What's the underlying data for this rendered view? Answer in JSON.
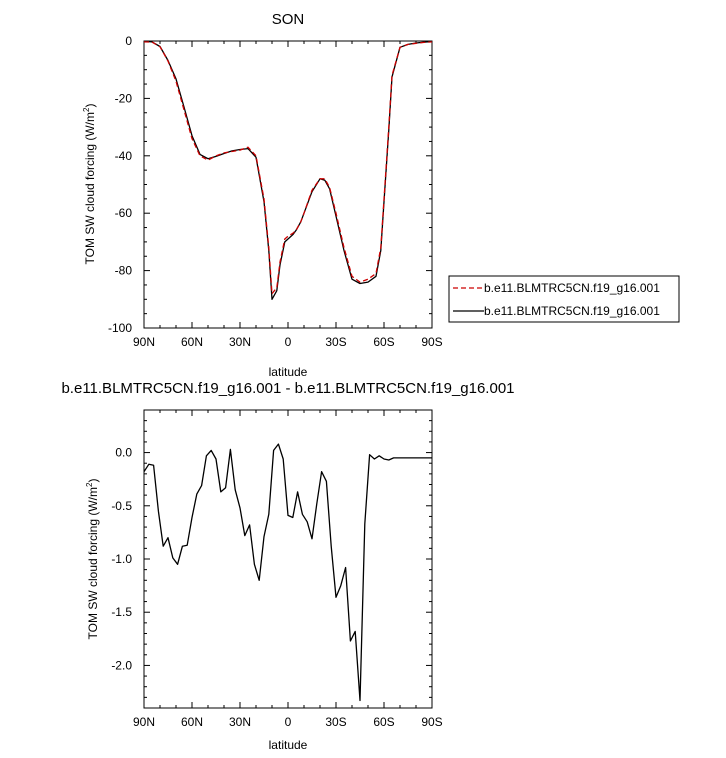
{
  "chart_data": [
    {
      "type": "line",
      "title": "SON",
      "xlabel": "latitude",
      "ylabel": "TOM SW cloud forcing (W/m²)",
      "ylabel_main": "TOM SW cloud forcing (W/m",
      "ylabel_sup": "2",
      "ylabel_end": ")",
      "xlim": [
        -90,
        90
      ],
      "ylim": [
        -100,
        0
      ],
      "xticks": [
        -90,
        -60,
        -30,
        0,
        30,
        60,
        90
      ],
      "xtick_labels": [
        "90N",
        "60N",
        "30N",
        "0",
        "30S",
        "60S",
        "90S"
      ],
      "yticks": [
        0,
        -20,
        -40,
        -60,
        -80,
        -100
      ],
      "ytick_labels": [
        "0",
        "-20",
        "-40",
        "-60",
        "-80",
        "-100"
      ],
      "legend_position": "right",
      "series": [
        {
          "name": "b.e11.BLMTRC5CN.f19_g16.001",
          "color": "#cc0000",
          "dash": "dashed",
          "x": [
            -90,
            -85,
            -80,
            -75,
            -70,
            -65,
            -60,
            -55,
            -50,
            -45,
            -40,
            -35,
            -30,
            -25,
            -20,
            -15,
            -12,
            -10,
            -7,
            -5,
            -2,
            0,
            3,
            5,
            8,
            10,
            15,
            20,
            23,
            26,
            30,
            35,
            40,
            45,
            50,
            55,
            58,
            60,
            63,
            65,
            70,
            75,
            80,
            85,
            90
          ],
          "y": [
            -0.3,
            -0.4,
            -2,
            -7,
            -14,
            -24,
            -34,
            -40,
            -41.5,
            -40,
            -39,
            -38.5,
            -38,
            -37,
            -40,
            -55,
            -72,
            -88,
            -86,
            -77,
            -69,
            -68,
            -67,
            -66,
            -63,
            -60,
            -52,
            -48,
            -48,
            -51,
            -60,
            -72,
            -82,
            -84,
            -83,
            -81,
            -72,
            -55,
            -30,
            -12,
            -2.2,
            -1.2,
            -0.8,
            -0.5,
            -0.3
          ]
        },
        {
          "name": "b.e11.BLMTRC5CN.f19_g16.001",
          "color": "#000000",
          "dash": "solid",
          "x": [
            -90,
            -85,
            -80,
            -75,
            -70,
            -65,
            -60,
            -55,
            -50,
            -45,
            -40,
            -35,
            -30,
            -25,
            -20,
            -15,
            -12,
            -10,
            -7,
            -5,
            -2,
            0,
            3,
            5,
            8,
            10,
            15,
            20,
            23,
            26,
            30,
            35,
            40,
            45,
            50,
            55,
            58,
            60,
            63,
            65,
            70,
            75,
            80,
            85,
            90
          ],
          "y": [
            -0.1,
            -0.3,
            -1.9,
            -6.8,
            -13.2,
            -23,
            -33,
            -39.5,
            -41,
            -40.2,
            -39.2,
            -38.3,
            -37.8,
            -37.5,
            -40.5,
            -56,
            -73,
            -90,
            -87,
            -78,
            -70,
            -69,
            -67.5,
            -66,
            -63,
            -60,
            -52.5,
            -48,
            -48.5,
            -51.5,
            -61,
            -73,
            -83,
            -84.5,
            -84,
            -82,
            -73,
            -56,
            -31,
            -12.5,
            -2.2,
            -1.2,
            -0.7,
            -0.4,
            -0.2
          ]
        }
      ]
    },
    {
      "type": "line",
      "title": "b.e11.BLMTRC5CN.f19_g16.001 - b.e11.BLMTRC5CN.f19_g16.001",
      "xlabel": "latitude",
      "ylabel": "TOM SW cloud forcing (W/m²)",
      "ylabel_main": "TOM SW cloud forcing (W/m",
      "ylabel_sup": "2",
      "ylabel_end": ")",
      "xlim": [
        -90,
        90
      ],
      "ylim": [
        -2.4,
        0.4
      ],
      "xticks": [
        -90,
        -60,
        -30,
        0,
        30,
        60,
        90
      ],
      "xtick_labels": [
        "90N",
        "60N",
        "30N",
        "0",
        "30S",
        "60S",
        "90S"
      ],
      "yticks": [
        0.0,
        -0.5,
        -1.0,
        -1.5,
        -2.0
      ],
      "ytick_labels": [
        "0.0",
        "-0.5",
        "-1.0",
        "-1.5",
        "-2.0"
      ],
      "series": [
        {
          "color": "#000000",
          "dash": "solid",
          "x": [
            -90,
            -87,
            -84,
            -81,
            -78,
            -75,
            -72,
            -69,
            -66,
            -63,
            -60,
            -57,
            -54,
            -51,
            -48,
            -45,
            -42,
            -39,
            -36,
            -33,
            -30,
            -27,
            -24,
            -21,
            -18,
            -15,
            -12,
            -9,
            -6,
            -3,
            0,
            3,
            6,
            9,
            12,
            15,
            18,
            21,
            24,
            27,
            30,
            33,
            36,
            39,
            42,
            45,
            48,
            51,
            54,
            57,
            60,
            63,
            66,
            69,
            72,
            75,
            78,
            81,
            84,
            87,
            90
          ],
          "y": [
            -0.18,
            -0.11,
            -0.12,
            -0.55,
            -0.88,
            -0.8,
            -0.99,
            -1.05,
            -0.88,
            -0.87,
            -0.61,
            -0.39,
            -0.31,
            -0.03,
            0.02,
            -0.06,
            -0.37,
            -0.33,
            0.03,
            -0.35,
            -0.52,
            -0.78,
            -0.68,
            -1.05,
            -1.2,
            -0.79,
            -0.58,
            0.02,
            0.08,
            -0.06,
            -0.59,
            -0.61,
            -0.37,
            -0.58,
            -0.65,
            -0.81,
            -0.48,
            -0.18,
            -0.27,
            -0.88,
            -1.36,
            -1.25,
            -1.08,
            -1.77,
            -1.68,
            -2.33,
            -0.67,
            -0.02,
            -0.06,
            -0.03,
            -0.06,
            -0.07,
            -0.05,
            -0.05,
            -0.05,
            -0.05,
            -0.05,
            -0.05,
            -0.05,
            -0.05,
            -0.05
          ]
        }
      ]
    }
  ]
}
